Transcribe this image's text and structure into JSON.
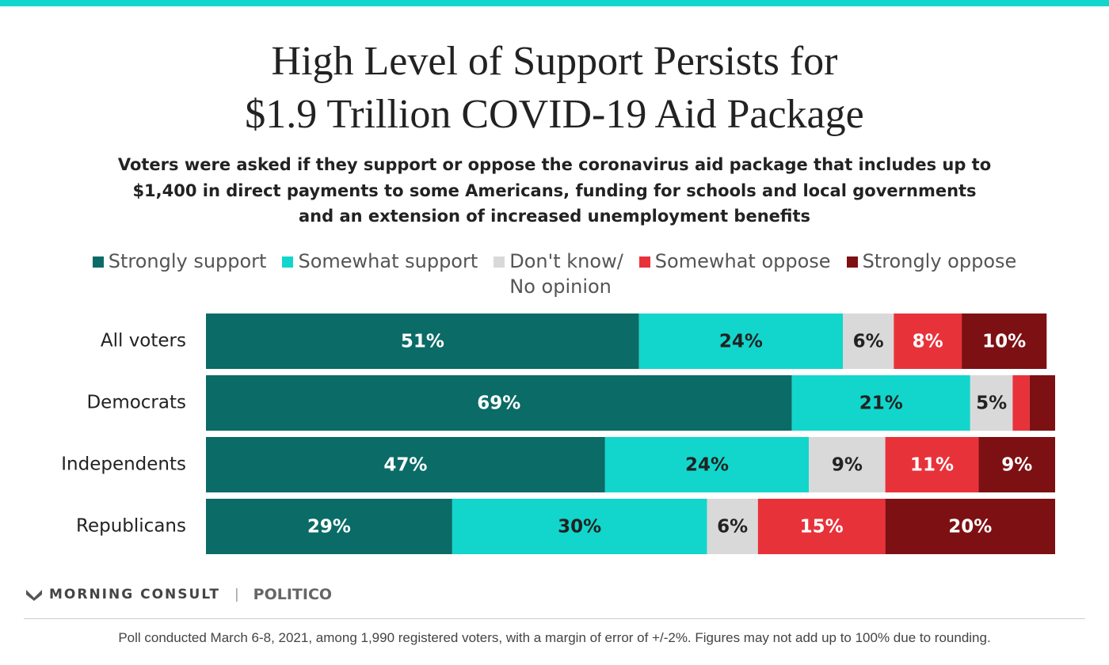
{
  "chart_data": {
    "type": "stacked_bar_horizontal",
    "title": "High Level of Support Persists for\n$1.9 Trillion COVID-19 Aid Package",
    "subtitle": "Voters were asked if they support or oppose the coronavirus aid package that includes up to\n$1,400 in direct payments to some Americans, funding for schools and local governments\nand an extension of increased unemployment benefits",
    "categories": [
      "All voters",
      "Democrats",
      "Independents",
      "Republicans"
    ],
    "xlim": [
      0,
      100
    ],
    "legend": "top",
    "series": [
      {
        "name": "Strongly support",
        "color": "#0b6b66",
        "values": [
          51,
          69,
          47,
          29
        ],
        "value_labels": [
          "51%",
          "69%",
          "47%",
          "29%"
        ]
      },
      {
        "name": "Somewhat support",
        "color": "#12d6cc",
        "values": [
          24,
          21,
          24,
          30
        ],
        "value_labels": [
          "24%",
          "21%",
          "24%",
          "30%"
        ]
      },
      {
        "name": "Don't know/\nNo opinion",
        "color": "#d9d9d9",
        "values": [
          6,
          5,
          9,
          6
        ],
        "value_labels": [
          "6%",
          "5%",
          "9%",
          "6%"
        ]
      },
      {
        "name": "Somewhat oppose",
        "color": "#e8323a",
        "values": [
          8,
          2,
          11,
          15
        ],
        "value_labels": [
          "8%",
          null,
          "11%",
          "15%"
        ]
      },
      {
        "name": "Strongly oppose",
        "color": "#7d1013",
        "values": [
          10,
          3,
          9,
          20
        ],
        "value_labels": [
          "10%",
          null,
          "9%",
          "20%"
        ]
      }
    ]
  },
  "footer": {
    "brand": "MORNING CONSULT",
    "partner": "POLITICO",
    "note": "Poll conducted March 6-8, 2021, among 1,990 registered voters, with a margin of error of +/-2%. Figures may not add up to 100% due to rounding."
  }
}
